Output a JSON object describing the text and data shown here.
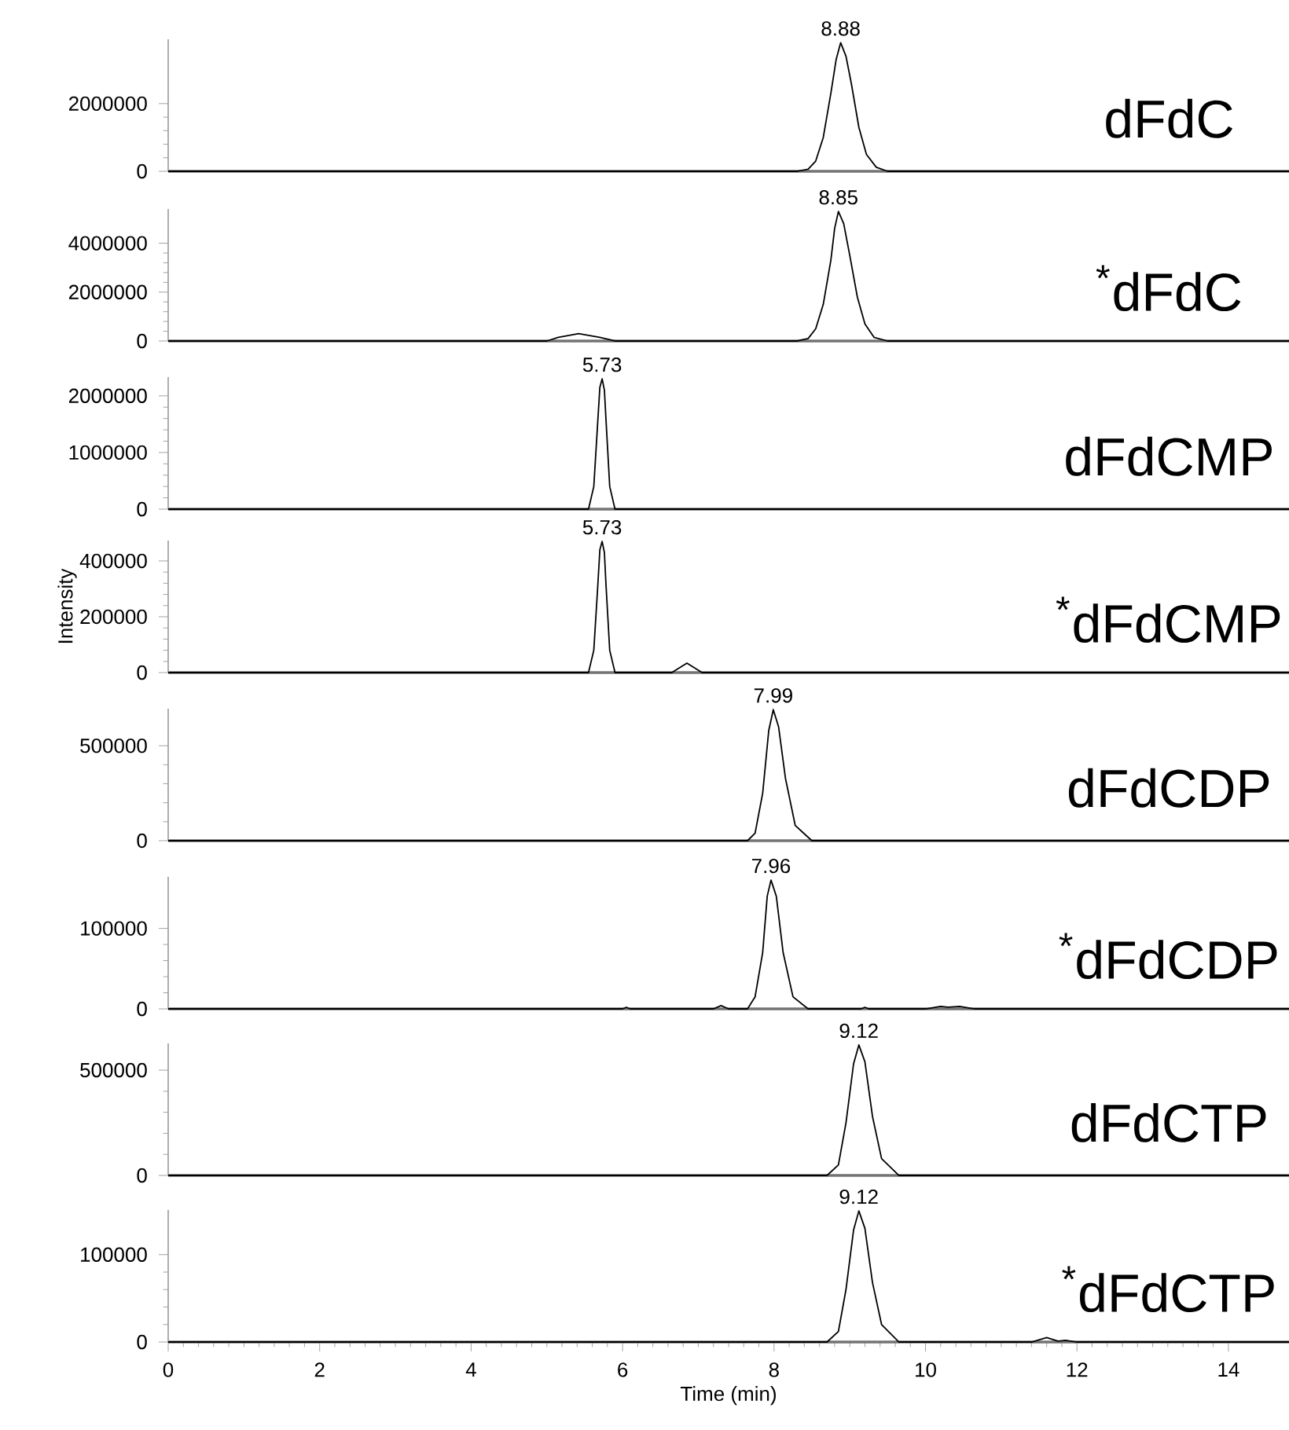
{
  "chart_data": [
    {
      "type": "line",
      "color": "#000000",
      "xlim": [
        0,
        14.8
      ],
      "ylim": [
        0,
        3900000
      ],
      "yticks": [
        0,
        2000000
      ],
      "tick_labels": "y",
      "x": [
        0,
        8.3,
        8.45,
        8.55,
        8.65,
        8.75,
        8.82,
        8.88,
        8.95,
        9.02,
        9.12,
        9.22,
        9.35,
        9.5,
        14.8
      ],
      "values": [
        0,
        0,
        60000,
        300000,
        1000000,
        2300000,
        3300000,
        3800000,
        3400000,
        2600000,
        1300000,
        500000,
        120000,
        0,
        0
      ],
      "annotations": [
        {
          "text": "8.88",
          "x": 8.88,
          "y": 3800000
        },
        "dFdC"
      ]
    },
    {
      "type": "line",
      "color": "#000000",
      "xlim": [
        0,
        14.8
      ],
      "ylim": [
        0,
        5400000
      ],
      "yticks": [
        0,
        2000000,
        4000000
      ],
      "tick_labels": "y",
      "x": [
        0,
        5.0,
        5.15,
        5.42,
        5.7,
        5.9,
        8.3,
        8.45,
        8.55,
        8.65,
        8.75,
        8.8,
        8.85,
        8.92,
        9.0,
        9.1,
        9.2,
        9.32,
        9.5,
        14.8
      ],
      "values": [
        0,
        0,
        150000,
        300000,
        150000,
        0,
        0,
        100000,
        500000,
        1500000,
        3300000,
        4600000,
        5300000,
        4800000,
        3500000,
        1800000,
        700000,
        150000,
        0,
        0
      ],
      "annotations": [
        {
          "text": "8.85",
          "x": 8.85,
          "y": 5300000
        },
        "$^{*}$dFdC"
      ]
    },
    {
      "type": "line",
      "color": "#000000",
      "xlim": [
        0,
        14.8
      ],
      "ylim": [
        0,
        2330000
      ],
      "yticks": [
        0,
        1000000,
        2000000
      ],
      "tick_labels": "y",
      "x": [
        0,
        5.55,
        5.62,
        5.67,
        5.7,
        5.73,
        5.76,
        5.78,
        5.83,
        5.9,
        14.8
      ],
      "values": [
        0,
        0,
        400000,
        1500000,
        2150000,
        2300000,
        2100000,
        1600000,
        400000,
        0,
        0
      ],
      "annotations": [
        {
          "text": "5.73",
          "x": 5.73,
          "y": 2300000
        },
        "dFdCMP"
      ]
    },
    {
      "type": "line",
      "color": "#000000",
      "xlim": [
        0,
        14.8
      ],
      "ylim": [
        0,
        473000
      ],
      "yticks": [
        0,
        200000,
        400000
      ],
      "tick_labels": "y",
      "ylabel": "Intensity",
      "x": [
        0,
        5.55,
        5.62,
        5.67,
        5.7,
        5.73,
        5.76,
        5.78,
        5.83,
        5.9,
        6.65,
        6.85,
        7.05,
        14.8
      ],
      "values": [
        0,
        0,
        80000,
        300000,
        440000,
        470000,
        430000,
        320000,
        80000,
        0,
        0,
        34000,
        0,
        0
      ],
      "annotations": [
        {
          "text": "5.73",
          "x": 5.73,
          "y": 470000
        },
        "$^{*}$dFdCMP"
      ]
    },
    {
      "type": "line",
      "color": "#000000",
      "xlim": [
        0,
        14.8
      ],
      "ylim": [
        0,
        695000
      ],
      "yticks": [
        0,
        500000
      ],
      "tick_labels": "y",
      "x": [
        0,
        7.65,
        7.75,
        7.85,
        7.93,
        7.99,
        8.06,
        8.15,
        8.28,
        8.5,
        14.8
      ],
      "values": [
        0,
        0,
        40000,
        250000,
        580000,
        690000,
        600000,
        330000,
        80000,
        0,
        0
      ],
      "annotations": [
        {
          "text": "7.99",
          "x": 7.99,
          "y": 690000
        },
        "dFdCDP"
      ]
    },
    {
      "type": "line",
      "color": "#000000",
      "xlim": [
        0,
        14.8
      ],
      "ylim": [
        0,
        164000
      ],
      "yticks": [
        0,
        100000
      ],
      "tick_labels": "y",
      "x": [
        0,
        6.0,
        6.05,
        6.1,
        7.2,
        7.3,
        7.4,
        7.65,
        7.75,
        7.85,
        7.91,
        7.96,
        8.03,
        8.12,
        8.25,
        8.45,
        9.15,
        9.2,
        9.25,
        10.0,
        10.2,
        10.3,
        10.45,
        10.65,
        14.8
      ],
      "values": [
        0,
        0,
        2000,
        0,
        0,
        4000,
        0,
        0,
        15000,
        70000,
        140000,
        160000,
        140000,
        70000,
        15000,
        0,
        0,
        2000,
        0,
        0,
        3000,
        2000,
        3000,
        0,
        0
      ],
      "annotations": [
        {
          "text": "7.96",
          "x": 7.96,
          "y": 160000
        },
        "$^{*}$dFdCDP"
      ]
    },
    {
      "type": "line",
      "color": "#000000",
      "xlim": [
        0,
        14.8
      ],
      "ylim": [
        0,
        627000
      ],
      "yticks": [
        0,
        500000
      ],
      "tick_labels": "y",
      "x": [
        0,
        8.7,
        8.85,
        8.95,
        9.05,
        9.12,
        9.2,
        9.3,
        9.42,
        9.65,
        14.8
      ],
      "values": [
        0,
        0,
        50000,
        250000,
        530000,
        620000,
        540000,
        280000,
        80000,
        0,
        0
      ],
      "annotations": [
        {
          "text": "9.12",
          "x": 9.12,
          "y": 620000
        },
        "dFdCTP"
      ]
    },
    {
      "type": "line",
      "color": "#000000",
      "xlim": [
        0,
        14.8
      ],
      "ylim": [
        0,
        151000
      ],
      "yticks": [
        0,
        100000
      ],
      "xticks": [
        0,
        2,
        4,
        6,
        8,
        10,
        12,
        14
      ],
      "xlabel": "Time (min)",
      "x": [
        0,
        8.7,
        8.85,
        8.95,
        9.05,
        9.12,
        9.2,
        9.3,
        9.42,
        9.65,
        11.4,
        11.6,
        11.75,
        11.85,
        12.0,
        14.8
      ],
      "values": [
        0,
        0,
        12000,
        60000,
        128000,
        150000,
        130000,
        68000,
        20000,
        0,
        0,
        5000,
        1000,
        2000,
        0,
        0
      ],
      "annotations": [
        {
          "text": "9.12",
          "x": 9.12,
          "y": 150000
        },
        "$^{*}$dFdCTP"
      ]
    }
  ]
}
